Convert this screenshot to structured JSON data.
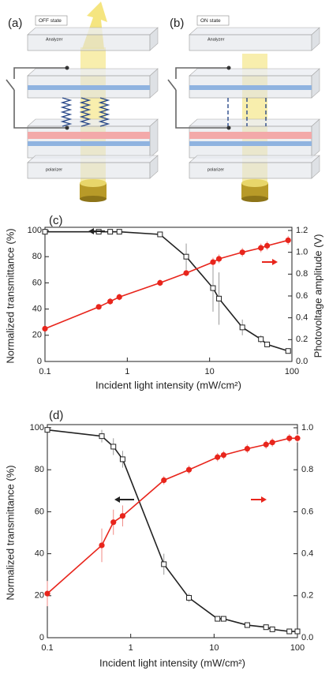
{
  "panels": [
    {
      "label": "(a)",
      "state": "OFF state",
      "analyzer": "Analyzer",
      "polarizer": "polarizer"
    },
    {
      "label": "(b)",
      "state": "ON state",
      "analyzer": "Analyzer",
      "polarizer": "polarizer"
    }
  ],
  "chart_data": [
    {
      "type": "line",
      "panel_label": "(c)",
      "x_label": "Incident light intensity (mW/cm²)",
      "y_label": "Normalized transmittance (%)",
      "y2_label": "Photovoltage amplitude (V)",
      "x_log": true,
      "x": [
        0.1,
        0.45,
        0.62,
        0.8,
        2.5,
        5.2,
        11,
        13,
        25,
        42,
        50,
        90
      ],
      "xlim": [
        0.1,
        100
      ],
      "xticks": [
        0.1,
        1,
        10,
        100
      ],
      "ylim": [
        0,
        100
      ],
      "yticks": [
        0,
        20,
        40,
        60,
        80,
        100
      ],
      "y2lim": [
        0,
        1.2
      ],
      "y2ticks": [
        {
          "value": 0,
          "label": "0.0"
        },
        0.2,
        0.4,
        0.6,
        0.8,
        {
          "value": 1,
          "label": "1.0"
        },
        1.2
      ],
      "series": [
        {
          "axis": "y",
          "color": "#222222",
          "marker": "open-square",
          "values": [
            99,
            99,
            99,
            99,
            97,
            80,
            56,
            48,
            26,
            17,
            13,
            8
          ],
          "errors": [
            0,
            0,
            0,
            0,
            1,
            10,
            18,
            20,
            6,
            3,
            2,
            2
          ]
        },
        {
          "axis": "y2",
          "color": "#e8251c",
          "marker": "circle",
          "values": [
            0.3,
            0.5,
            0.55,
            0.59,
            0.72,
            0.81,
            0.91,
            0.94,
            1.0,
            1.04,
            1.06,
            1.11
          ],
          "errors": [
            0.01,
            0.02,
            0.03,
            0.03,
            0.03,
            0.03,
            0.04,
            0.04,
            0.04,
            0.04,
            0.04,
            0.04
          ]
        }
      ]
    },
    {
      "type": "line",
      "panel_label": "(d)",
      "x_label": "Incident light intensity (mW/cm²)",
      "y_label": "Normalized transmittance (%)",
      "x_log": true,
      "x": [
        0.1,
        0.45,
        0.62,
        0.8,
        2.5,
        5,
        11,
        13,
        25,
        42,
        50,
        80,
        100
      ],
      "xlim": [
        0.1,
        100
      ],
      "xticks": [
        0.1,
        1,
        10,
        100
      ],
      "ylim": [
        0,
        100
      ],
      "yticks": [
        0,
        20,
        40,
        60,
        80,
        100
      ],
      "y2lim": [
        0,
        1
      ],
      "y2ticks": [
        {
          "value": 0,
          "label": "0.0"
        },
        0.2,
        0.4,
        0.6,
        0.8,
        {
          "value": 1,
          "label": "1.0"
        }
      ],
      "series": [
        {
          "axis": "y",
          "color": "#222222",
          "marker": "open-square",
          "values": [
            99,
            96,
            91,
            85,
            35,
            19,
            9,
            9,
            6,
            5,
            4,
            3,
            3
          ],
          "errors": [
            1,
            3,
            4,
            4,
            5,
            2,
            1,
            1,
            1,
            1,
            1,
            1,
            1
          ]
        },
        {
          "axis": "y2",
          "color": "#e8251c",
          "marker": "circle",
          "values": [
            0.21,
            0.44,
            0.55,
            0.58,
            0.75,
            0.8,
            0.86,
            0.87,
            0.9,
            0.92,
            0.93,
            0.95,
            0.95
          ],
          "errors": [
            0.06,
            0.08,
            0.06,
            0.05,
            0.02,
            0.02,
            0.02,
            0.02,
            0.02,
            0.02,
            0.02,
            0.02,
            0.02
          ]
        }
      ]
    }
  ]
}
